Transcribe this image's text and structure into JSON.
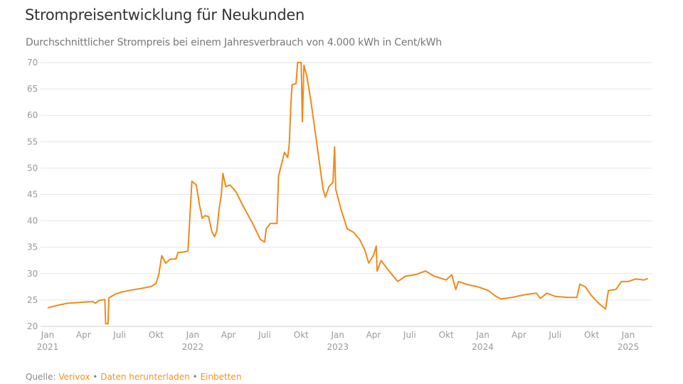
{
  "title": "Strompreisentwicklung für Neukunden",
  "subtitle": "Durchschnittlicher Strompreis bei einem Jahresverbrauch von 4.000 kWh in Cent/kWh",
  "footer": {
    "source_label": "Quelle:",
    "source_link": "Verivox",
    "separator": "•",
    "download_link": "Daten herunterladen",
    "embed_link": "Einbetten",
    "link_color": "#f0951e"
  },
  "chart_data": {
    "type": "line",
    "title": "Strompreisentwicklung für Neukunden",
    "ylabel": "",
    "xlabel": "",
    "ylim": [
      20,
      70
    ],
    "xlim": [
      "2020-12-15",
      "2025-03-10"
    ],
    "grid": true,
    "line_color": "#f0891a",
    "yticks": [
      20,
      25,
      30,
      35,
      40,
      45,
      50,
      55,
      60,
      65,
      70
    ],
    "xticks": [
      {
        "date": "2021-01-01",
        "label": "Jan",
        "year": "2021"
      },
      {
        "date": "2021-04-01",
        "label": "Apr"
      },
      {
        "date": "2021-07-01",
        "label": "Juli"
      },
      {
        "date": "2021-10-01",
        "label": "Okt"
      },
      {
        "date": "2022-01-01",
        "label": "Jan",
        "year": "2022"
      },
      {
        "date": "2022-04-01",
        "label": "Apr"
      },
      {
        "date": "2022-07-01",
        "label": "Juli"
      },
      {
        "date": "2022-10-01",
        "label": "Okt"
      },
      {
        "date": "2023-01-01",
        "label": "Jan",
        "year": "2023"
      },
      {
        "date": "2023-04-01",
        "label": "Apr"
      },
      {
        "date": "2023-07-01",
        "label": "Juli"
      },
      {
        "date": "2023-10-01",
        "label": "Okt"
      },
      {
        "date": "2024-01-01",
        "label": "Jan",
        "year": "2024"
      },
      {
        "date": "2024-04-01",
        "label": "Apr"
      },
      {
        "date": "2024-07-01",
        "label": "Juli"
      },
      {
        "date": "2024-10-01",
        "label": "Okt"
      },
      {
        "date": "2025-01-01",
        "label": "Jan",
        "year": "2025"
      }
    ],
    "series": [
      {
        "x": [
          "2021-01-01",
          "2021-01-15",
          "2021-02-01",
          "2021-02-20",
          "2021-03-15",
          "2021-04-01",
          "2021-04-25",
          "2021-05-01",
          "2021-05-10",
          "2021-05-25",
          "2021-05-27",
          "2021-06-02",
          "2021-06-04",
          "2021-06-20",
          "2021-07-05",
          "2021-08-01",
          "2021-09-01",
          "2021-09-20",
          "2021-10-01",
          "2021-10-08",
          "2021-10-15",
          "2021-10-25",
          "2021-11-05",
          "2021-11-20",
          "2021-11-25",
          "2021-12-10",
          "2021-12-20",
          "2021-12-25",
          "2021-12-30",
          "2022-01-10",
          "2022-01-18",
          "2022-01-25",
          "2022-02-01",
          "2022-02-10",
          "2022-02-18",
          "2022-02-25",
          "2022-03-03",
          "2022-03-08",
          "2022-03-14",
          "2022-03-18",
          "2022-03-25",
          "2022-04-05",
          "2022-04-20",
          "2022-05-10",
          "2022-06-01",
          "2022-06-20",
          "2022-07-01",
          "2022-07-05",
          "2022-07-15",
          "2022-08-01",
          "2022-08-05",
          "2022-08-10",
          "2022-08-20",
          "2022-08-28",
          "2022-09-01",
          "2022-09-05",
          "2022-09-08",
          "2022-09-18",
          "2022-09-22",
          "2022-10-01",
          "2022-10-04",
          "2022-10-08",
          "2022-10-15",
          "2022-10-25",
          "2022-11-05",
          "2022-11-15",
          "2022-11-25",
          "2022-12-01",
          "2022-12-10",
          "2022-12-20",
          "2022-12-24",
          "2022-12-27",
          "2023-01-10",
          "2023-01-25",
          "2023-02-10",
          "2023-02-25",
          "2023-03-10",
          "2023-03-20",
          "2023-04-01",
          "2023-04-08",
          "2023-04-10",
          "2023-04-20",
          "2023-05-10",
          "2023-06-01",
          "2023-06-20",
          "2023-07-15",
          "2023-08-10",
          "2023-09-01",
          "2023-10-01",
          "2023-10-15",
          "2023-10-25",
          "2023-11-01",
          "2023-11-20",
          "2023-12-01",
          "2023-12-20",
          "2024-01-15",
          "2024-02-01",
          "2024-02-15",
          "2024-03-15",
          "2024-04-15",
          "2024-05-15",
          "2024-05-25",
          "2024-06-10",
          "2024-07-01",
          "2024-08-01",
          "2024-08-25",
          "2024-09-01",
          "2024-09-15",
          "2024-10-01",
          "2024-10-20",
          "2024-11-05",
          "2024-11-12",
          "2024-12-01",
          "2024-12-15",
          "2025-01-01",
          "2025-01-20",
          "2025-02-10",
          "2025-02-20"
        ],
        "values": [
          23.5,
          23.8,
          24.1,
          24.4,
          24.5,
          24.6,
          24.7,
          24.4,
          24.9,
          25.1,
          20.5,
          20.5,
          25.4,
          26.1,
          26.5,
          26.9,
          27.3,
          27.6,
          28.2,
          30.0,
          33.4,
          32.0,
          32.7,
          32.8,
          34.0,
          34.1,
          34.3,
          41.0,
          47.5,
          46.8,
          43.0,
          40.5,
          41.0,
          40.8,
          38.0,
          37.0,
          38.2,
          42.0,
          45.0,
          49.0,
          46.5,
          46.8,
          45.5,
          42.5,
          39.5,
          36.5,
          36.0,
          38.5,
          39.5,
          39.5,
          48.5,
          50.0,
          53.0,
          52.0,
          54.5,
          62.0,
          65.8,
          66.0,
          70.0,
          70.0,
          58.8,
          69.5,
          67.5,
          63.0,
          57.0,
          51.5,
          46.0,
          44.5,
          46.5,
          47.3,
          54.0,
          46.0,
          42.0,
          38.5,
          37.8,
          36.5,
          34.5,
          32.0,
          33.5,
          35.2,
          30.5,
          32.5,
          30.5,
          28.5,
          29.5,
          29.8,
          30.5,
          29.5,
          28.8,
          29.8,
          27.0,
          28.5,
          28.0,
          27.8,
          27.5,
          26.8,
          25.8,
          25.2,
          25.5,
          26.0,
          26.3,
          25.3,
          26.3,
          25.7,
          25.5,
          25.5,
          28.0,
          27.5,
          25.8,
          24.3,
          23.3,
          26.8,
          27.0,
          28.5,
          28.5,
          29.0,
          28.8,
          29.1
        ]
      }
    ]
  }
}
